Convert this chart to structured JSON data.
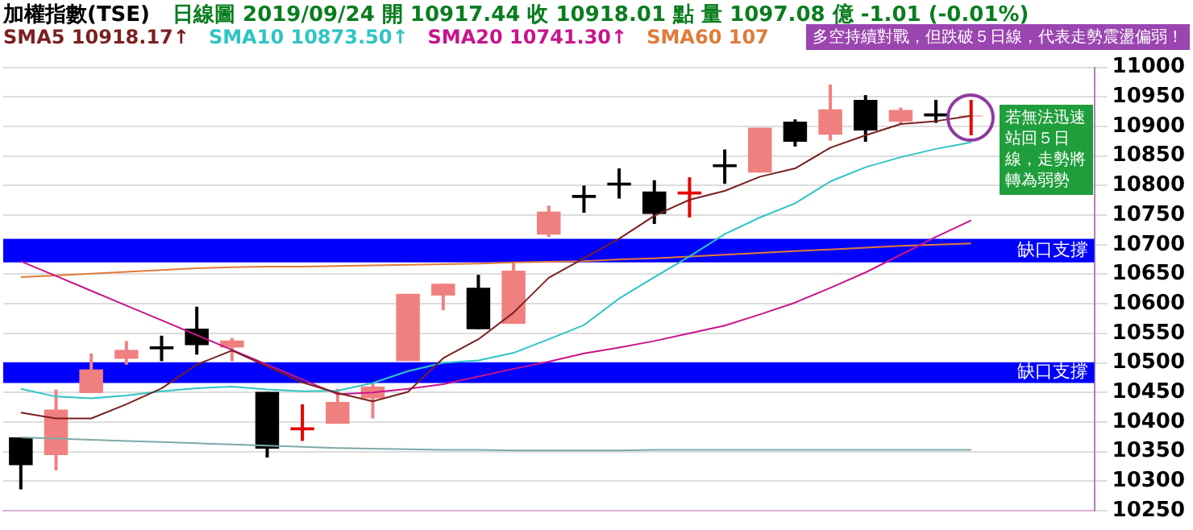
{
  "chart_data": {
    "type": "candlestick",
    "title": "加權指數(TSE)",
    "subtitle": "日線圖 2019/09/24 開 10917.44 收 10918.01 點 量 1097.08 億 -1.01 (-0.01%)",
    "categories": [
      null,
      null,
      null,
      null,
      null,
      null,
      null,
      null,
      null,
      null,
      null,
      null,
      null,
      null,
      null,
      null,
      null,
      null,
      null,
      null,
      null,
      null,
      null,
      null,
      null,
      null,
      null,
      null,
      null,
      null,
      null
    ],
    "series": [
      {
        "type": "candlestick",
        "ohlc": [
          [
            10374,
            10374,
            10286,
            10327
          ],
          [
            10344,
            10455,
            10318,
            10421
          ],
          [
            10449,
            10516,
            10449,
            10489
          ],
          [
            10507,
            10537,
            10497,
            10522
          ],
          [
            10528,
            10546,
            10503,
            10523
          ],
          [
            10558,
            10595,
            10514,
            10530
          ],
          [
            10526,
            10542,
            10503,
            10538
          ],
          [
            10451,
            10451,
            10340,
            10355
          ],
          [
            10386,
            10430,
            10368,
            10391
          ],
          [
            10397,
            10456,
            10397,
            10434
          ],
          [
            10440,
            10466,
            10406,
            10460
          ],
          [
            10503,
            10617,
            10503,
            10617
          ],
          [
            10614,
            10634,
            10589,
            10634
          ],
          [
            10627,
            10649,
            10557,
            10557
          ],
          [
            10566,
            10670,
            10566,
            10656
          ],
          [
            10717,
            10766,
            10713,
            10756
          ],
          [
            10784,
            10800,
            10754,
            10779
          ],
          [
            10805,
            10829,
            10778,
            10800
          ],
          [
            10790,
            10809,
            10735,
            10752
          ],
          [
            10785,
            10814,
            10746,
            10790
          ],
          [
            10836,
            10861,
            10803,
            10831
          ],
          [
            10822,
            10898,
            10822,
            10898
          ],
          [
            10908,
            10912,
            10866,
            10874
          ],
          [
            10886,
            10971,
            10876,
            10929
          ],
          [
            10945,
            10953,
            10874,
            10893
          ],
          [
            10908,
            10932,
            10904,
            10928
          ],
          [
            10922,
            10945,
            10906,
            10917
          ],
          [
            10917.44,
            10945,
            10885,
            10918.01
          ],
          null,
          null,
          null
        ],
        "colors": [
          "#000000",
          "#f08080",
          "#f08080",
          "#f08080",
          "#000000",
          "#000000",
          "#f08080",
          "#000000",
          "#e60000",
          "#f08080",
          "#f08080",
          "#f08080",
          "#f08080",
          "#000000",
          "#f08080",
          "#f08080",
          "#000000",
          "#000000",
          "#000000",
          "#e60000",
          "#000000",
          "#f08080",
          "#000000",
          "#f08080",
          "#000000",
          "#f08080",
          "#000000",
          "#e60000",
          null,
          null,
          null
        ]
      },
      {
        "type": "line",
        "name": "SMA5 10918.17↑",
        "color": "#7a1f1f",
        "values": [
          10416,
          10406,
          10406,
          10430,
          10457,
          10497,
          10521,
          10494,
          10467,
          10449,
          10435,
          10451,
          10508,
          10540,
          10585,
          10644,
          10677,
          10710,
          10749,
          10776,
          10791,
          10815,
          10829,
          10864,
          10885,
          10904,
          10909,
          10918,
          null,
          null,
          null
        ]
      },
      {
        "type": "line",
        "name": "SMA10 10873.50↑",
        "color": "#2fc4c4",
        "values": [
          10456,
          10443,
          10440,
          10445,
          10452,
          10457,
          10460,
          10455,
          10452,
          10453,
          10466,
          10486,
          10500,
          10504,
          10517,
          10540,
          10564,
          10609,
          10645,
          10680,
          10718,
          10746,
          10770,
          10807,
          10831,
          10848,
          10862,
          10873,
          null,
          null,
          null
        ]
      },
      {
        "type": "line",
        "name": "SMA20 10741.30↑",
        "color": "#c8148c",
        "values": [
          10672,
          10647,
          10622,
          10597,
          10572,
          10547,
          10522,
          10497,
          10472,
          10447,
          10450,
          10456,
          10464,
          10477,
          10490,
          10502,
          10516,
          10526,
          10537,
          10550,
          10563,
          10582,
          10602,
          10627,
          10653,
          10683,
          10713,
          10741,
          null,
          null,
          null
        ]
      },
      {
        "type": "line",
        "name": "SMA60 107",
        "color": "#e07b39",
        "values": [
          10645,
          10648,
          10651,
          10654,
          10657,
          10660,
          10662,
          10663,
          10663,
          10664,
          10665,
          10666,
          10667,
          10668,
          10670,
          10671,
          10672,
          10675,
          10677,
          10680,
          10683,
          10686,
          10689,
          10692,
          10695,
          10698,
          10700,
          10702,
          null,
          null,
          null
        ]
      },
      {
        "type": "line",
        "color": "#7fa8a8",
        "values": [
          10374,
          10372,
          10370,
          10368,
          10366,
          10364,
          10362,
          10360,
          10358,
          10356,
          10355,
          10354,
          10353,
          10353,
          10352,
          10352,
          10352,
          10352,
          10353,
          10353,
          10353,
          10353,
          10353,
          10353,
          10353,
          10353,
          10353,
          10353,
          null,
          null,
          null
        ]
      }
    ],
    "ylim": [
      10250,
      11000
    ],
    "yticks": [
      10250,
      10300,
      10350,
      10400,
      10450,
      10500,
      10550,
      10600,
      10650,
      10700,
      10750,
      10800,
      10850,
      10900,
      10950,
      11000
    ],
    "grid": "y",
    "legend": "top left",
    "tick_labels": "y",
    "bands": [
      {
        "axis": "y",
        "from": 10670,
        "to": 10710,
        "label": "缺口支撐",
        "color": "#0000ff"
      },
      {
        "axis": "y",
        "from": 10466,
        "to": 10501,
        "label": "缺口支撐",
        "color": "#0000ff"
      }
    ],
    "annotations": [
      "多空持續對戰，但跌破５日線，代表走勢震盪偏弱！",
      "若無法迅速站回５日線，走勢將轉為弱勢"
    ]
  }
}
